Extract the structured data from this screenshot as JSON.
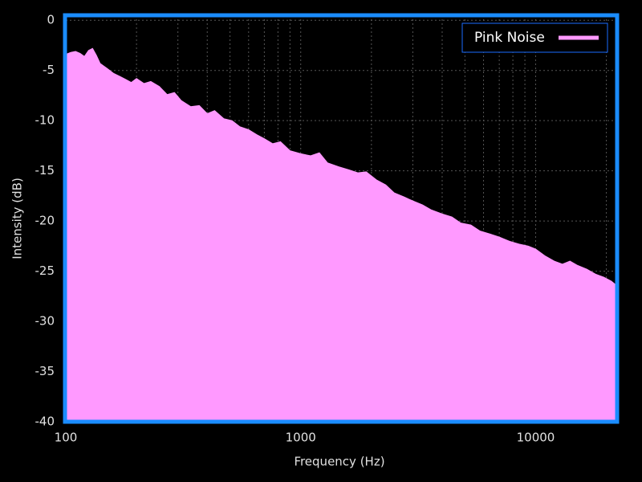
{
  "chart_data": {
    "type": "area",
    "title": null,
    "xlabel": "Frequency (Hz)",
    "ylabel": "Intensity (dB)",
    "xscale": "log",
    "xlim": [
      100,
      22050
    ],
    "xticks": [
      100,
      1000,
      10000
    ],
    "ylim": [
      -40,
      0.5
    ],
    "yticks": [
      0,
      -5,
      -10,
      -15,
      -20,
      -25,
      -30,
      -35,
      -40
    ],
    "grid": true,
    "legend": "upper right",
    "x": [
      100,
      105,
      110,
      115,
      120,
      125,
      130,
      135,
      140,
      150,
      160,
      170,
      180,
      190,
      200,
      215,
      230,
      250,
      270,
      290,
      310,
      340,
      370,
      400,
      430,
      470,
      510,
      550,
      600,
      650,
      700,
      760,
      820,
      900,
      1000,
      1100,
      1200,
      1300,
      1450,
      1600,
      1750,
      1900,
      2100,
      2300,
      2500,
      2750,
      3000,
      3300,
      3600,
      4000,
      4400,
      4800,
      5300,
      5800,
      6400,
      7000,
      7700,
      8500,
      9300,
      10000,
      11000,
      12000,
      13000,
      14000,
      15000,
      16500,
      18000,
      19500,
      21000,
      22050
    ],
    "series": [
      {
        "name": "Pink Noise",
        "color": "#ff99ff",
        "values": [
          -3.4,
          -3.2,
          -3.1,
          -3.3,
          -3.6,
          -3.0,
          -2.8,
          -3.5,
          -4.3,
          -4.8,
          -5.3,
          -5.6,
          -5.9,
          -6.2,
          -5.8,
          -6.3,
          -6.1,
          -6.6,
          -7.4,
          -7.2,
          -8.0,
          -8.6,
          -8.5,
          -9.3,
          -9.0,
          -9.8,
          -10.0,
          -10.6,
          -10.9,
          -11.4,
          -11.8,
          -12.3,
          -12.1,
          -13.0,
          -13.3,
          -13.5,
          -13.2,
          -14.2,
          -14.6,
          -14.9,
          -15.2,
          -15.1,
          -15.9,
          -16.4,
          -17.2,
          -17.6,
          -18.0,
          -18.4,
          -18.9,
          -19.3,
          -19.6,
          -20.2,
          -20.4,
          -21.0,
          -21.3,
          -21.6,
          -22.0,
          -22.3,
          -22.5,
          -22.8,
          -23.5,
          -24.0,
          -24.3,
          -24.0,
          -24.4,
          -24.8,
          -25.3,
          -25.6,
          -26.0,
          -26.4
        ]
      }
    ]
  }
}
